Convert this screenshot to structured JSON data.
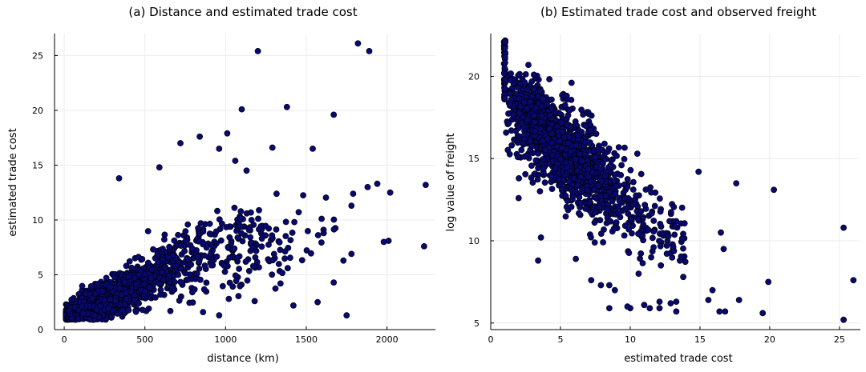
{
  "chart_data": [
    {
      "type": "scatter",
      "title": "(a) Distance and estimated trade cost",
      "xlabel": "distance (km)",
      "ylabel": "estimated trade cost",
      "xlim": [
        -60,
        2300
      ],
      "ylim": [
        0,
        27
      ],
      "xticks": [
        0,
        500,
        1000,
        1500,
        2000
      ],
      "yticks": [
        0,
        5,
        10,
        15,
        20,
        25
      ],
      "grid": true,
      "marker_color": "#08086e",
      "cluster": {
        "n": 1500,
        "x_min": 0,
        "x_max": 2250,
        "x_scale": 400,
        "y_base": 1.0,
        "y_slope": 0.0068,
        "y_cap_x": 950,
        "y_noise": 1.4
      },
      "points": [
        {
          "x": 1200,
          "y": 25.4
        },
        {
          "x": 1820,
          "y": 26.1
        },
        {
          "x": 1890,
          "y": 25.4
        },
        {
          "x": 1100,
          "y": 20.1
        },
        {
          "x": 1380,
          "y": 20.3
        },
        {
          "x": 1670,
          "y": 19.6
        },
        {
          "x": 840,
          "y": 17.6
        },
        {
          "x": 1010,
          "y": 17.9
        },
        {
          "x": 720,
          "y": 17.0
        },
        {
          "x": 1540,
          "y": 16.5
        },
        {
          "x": 1290,
          "y": 16.6
        },
        {
          "x": 960,
          "y": 16.5
        },
        {
          "x": 2240,
          "y": 13.2
        },
        {
          "x": 2020,
          "y": 12.5
        },
        {
          "x": 1940,
          "y": 13.3
        },
        {
          "x": 1880,
          "y": 13.0
        },
        {
          "x": 1790,
          "y": 12.4
        },
        {
          "x": 1780,
          "y": 11.3
        },
        {
          "x": 1980,
          "y": 8.0
        },
        {
          "x": 2010,
          "y": 8.1
        },
        {
          "x": 2230,
          "y": 7.6
        },
        {
          "x": 1750,
          "y": 1.3
        },
        {
          "x": 1420,
          "y": 2.2
        },
        {
          "x": 1570,
          "y": 2.5
        },
        {
          "x": 1670,
          "y": 4.3
        },
        {
          "x": 1780,
          "y": 6.9
        },
        {
          "x": 1730,
          "y": 6.3
        },
        {
          "x": 1340,
          "y": 4.2
        },
        {
          "x": 1180,
          "y": 2.6
        },
        {
          "x": 1020,
          "y": 2.8
        },
        {
          "x": 860,
          "y": 1.6
        },
        {
          "x": 960,
          "y": 1.3
        },
        {
          "x": 340,
          "y": 13.8
        },
        {
          "x": 590,
          "y": 14.8
        },
        {
          "x": 1060,
          "y": 15.4
        },
        {
          "x": 1130,
          "y": 14.5
        }
      ]
    },
    {
      "type": "scatter",
      "title": "(b) Estimated trade cost and observed freight",
      "xlabel": "estimated trade cost",
      "ylabel": "log value of freight",
      "xlim": [
        0,
        26.5
      ],
      "ylim": [
        4.6,
        22.6
      ],
      "xticks": [
        0,
        5,
        10,
        15,
        20,
        25
      ],
      "yticks": [
        5,
        10,
        15,
        20
      ],
      "grid": true,
      "marker_color": "#08086e",
      "cluster": {
        "n": 1500,
        "x_min": 1,
        "x_max": 17,
        "x_shape": 2.3,
        "x_scale": 2.4,
        "y_base": 18.6,
        "y_slope": -0.72,
        "y_noise": 1.35
      },
      "points": [
        {
          "x": 25.3,
          "y": 5.2
        },
        {
          "x": 25.3,
          "y": 10.8
        },
        {
          "x": 26.0,
          "y": 7.6
        },
        {
          "x": 20.3,
          "y": 13.1
        },
        {
          "x": 19.9,
          "y": 7.5
        },
        {
          "x": 19.5,
          "y": 5.6
        },
        {
          "x": 17.6,
          "y": 13.5
        },
        {
          "x": 17.8,
          "y": 6.4
        },
        {
          "x": 16.5,
          "y": 10.5
        },
        {
          "x": 16.7,
          "y": 9.5
        },
        {
          "x": 16.4,
          "y": 5.7
        },
        {
          "x": 16.8,
          "y": 5.7
        },
        {
          "x": 15.9,
          "y": 7.0
        },
        {
          "x": 15.6,
          "y": 6.4
        },
        {
          "x": 14.9,
          "y": 14.2
        },
        {
          "x": 13.8,
          "y": 7.8
        },
        {
          "x": 13.3,
          "y": 6.3
        },
        {
          "x": 12.9,
          "y": 6.2
        },
        {
          "x": 12.1,
          "y": 6.3
        },
        {
          "x": 11.4,
          "y": 5.9
        },
        {
          "x": 10.0,
          "y": 5.9
        },
        {
          "x": 9.8,
          "y": 6.0
        },
        {
          "x": 8.5,
          "y": 5.9
        },
        {
          "x": 12.1,
          "y": 5.9
        },
        {
          "x": 11.0,
          "y": 6.1
        },
        {
          "x": 13.3,
          "y": 5.7
        },
        {
          "x": 8.9,
          "y": 7.0
        },
        {
          "x": 8.5,
          "y": 7.3
        },
        {
          "x": 7.9,
          "y": 7.3
        },
        {
          "x": 7.2,
          "y": 7.6
        },
        {
          "x": 10.6,
          "y": 8.0
        },
        {
          "x": 12.2,
          "y": 8.5
        },
        {
          "x": 6.1,
          "y": 8.9
        },
        {
          "x": 3.4,
          "y": 8.8
        },
        {
          "x": 3.6,
          "y": 10.2
        },
        {
          "x": 2.0,
          "y": 12.6
        },
        {
          "x": 2.7,
          "y": 20.7
        },
        {
          "x": 3.1,
          "y": 20.1
        }
      ],
      "column_x1": {
        "x": 1.0,
        "y_min": 18.6,
        "y_max": 22.2,
        "n": 45
      }
    }
  ]
}
